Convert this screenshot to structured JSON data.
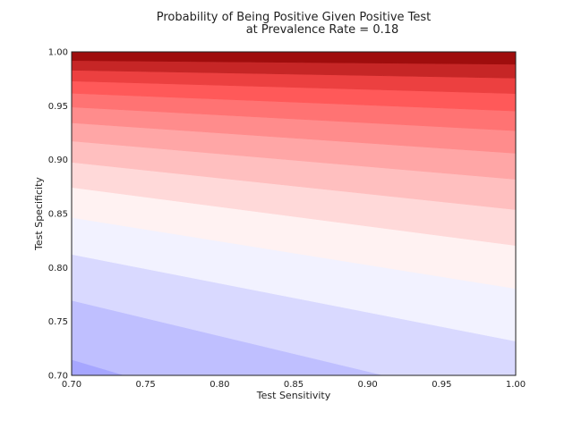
{
  "chart_data": {
    "type": "contourf",
    "title_line1": "Probability of Being Positive Given Positive Test",
    "title_line2": "at Prevalence Rate = 0.18",
    "xlabel": "Test Sensitivity",
    "ylabel": "Test Specificity",
    "xlim": [
      0.7,
      1.0
    ],
    "ylim": [
      0.7,
      1.0
    ],
    "prevalence": 0.18,
    "x_ticks": [
      "0.70",
      "0.75",
      "0.80",
      "0.85",
      "0.90",
      "0.95",
      "1.00"
    ],
    "y_ticks": [
      "0.70",
      "0.75",
      "0.80",
      "0.85",
      "0.90",
      "0.95",
      "1.00"
    ],
    "levels": [
      0.0,
      0.05,
      0.1,
      0.15,
      0.2,
      0.25,
      0.3,
      0.35,
      0.4,
      0.45,
      0.5,
      0.55,
      0.6,
      0.65,
      0.7,
      0.75,
      0.8,
      0.85,
      0.9,
      0.95,
      1.0
    ],
    "colormap": "bwr",
    "value_range": [
      0.0,
      1.0
    ],
    "grid": false
  }
}
